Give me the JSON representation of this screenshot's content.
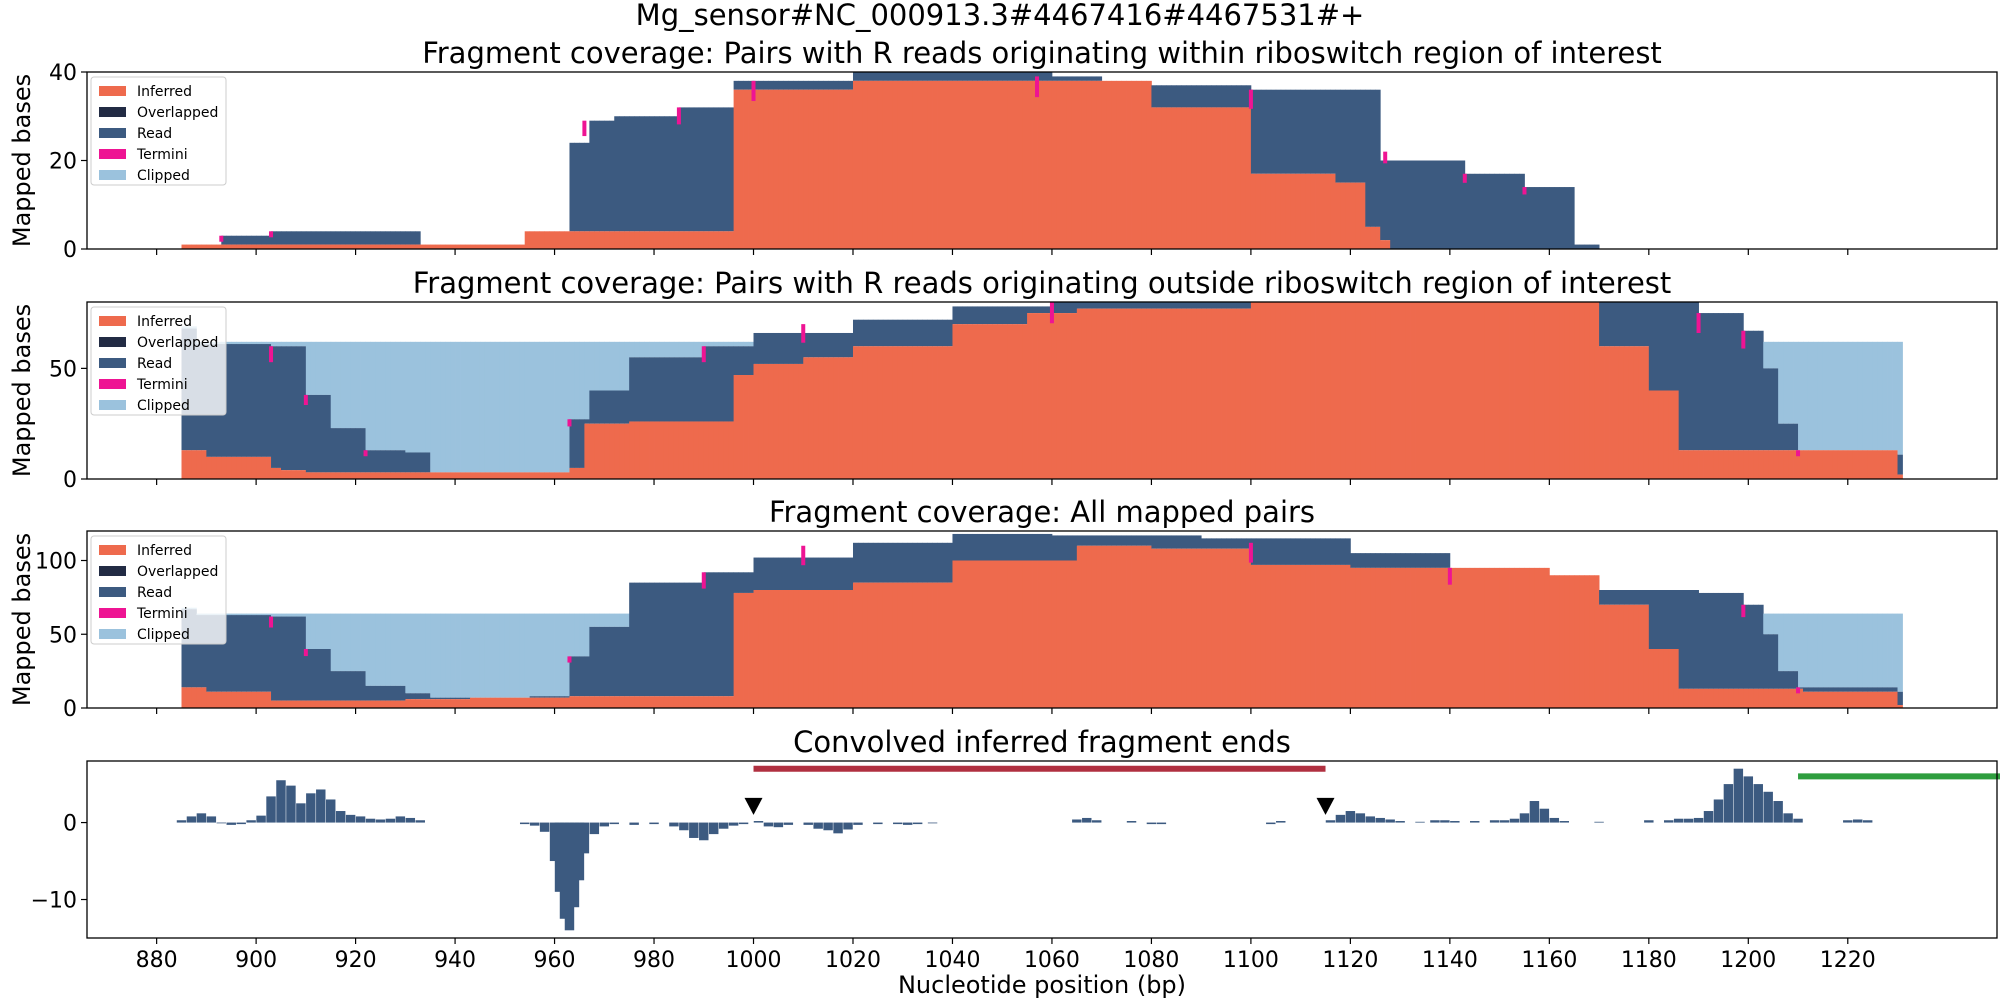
{
  "figure_title": "Mg_sensor#NC_000913.3#4467416#4467531#+",
  "colors": {
    "Inferred": "#ee6a4d",
    "Overlapped": "#222b44",
    "Read": "#3c5a80",
    "Termini": "#ee1493",
    "Clipped": "#9bc2dd",
    "region_bar": "#b03040",
    "offscreen_bar": "#2e9e3e",
    "marker": "#000000"
  },
  "chart_data": [
    {
      "type": "area",
      "title": "Fragment coverage: Pairs with R reads originating within riboswitch region of interest",
      "xlabel": "",
      "ylabel": "Mapped bases",
      "xlim": [
        866,
        1250
      ],
      "ylim": [
        0,
        40
      ],
      "yticks": [
        0,
        20,
        40
      ],
      "legend": [
        "Inferred",
        "Overlapped",
        "Read",
        "Termini",
        "Clipped"
      ],
      "legend_position": "upper-left",
      "step_series": {
        "Inferred": [
          [
            885,
            1
          ],
          [
            954,
            4
          ],
          [
            996,
            36
          ],
          [
            1020,
            38
          ],
          [
            1080,
            32
          ],
          [
            1100,
            17
          ],
          [
            1117,
            15
          ],
          [
            1123,
            5
          ],
          [
            1126,
            2
          ],
          [
            1128,
            0
          ]
        ],
        "Read": [
          [
            885,
            1
          ],
          [
            893,
            3
          ],
          [
            903,
            4
          ],
          [
            933,
            0
          ],
          [
            963,
            24
          ],
          [
            967,
            29
          ],
          [
            972,
            30
          ],
          [
            985,
            32
          ],
          [
            996,
            38
          ],
          [
            1020,
            40
          ],
          [
            1060,
            39
          ],
          [
            1070,
            37
          ],
          [
            1100,
            36
          ],
          [
            1126,
            20
          ],
          [
            1143,
            17
          ],
          [
            1155,
            14
          ],
          [
            1165,
            1
          ],
          [
            1170,
            0
          ]
        ],
        "Termini": [
          [
            893,
            3
          ],
          [
            903,
            4
          ],
          [
            966,
            29
          ],
          [
            985,
            32
          ],
          [
            1000,
            38
          ],
          [
            1057,
            39
          ],
          [
            1100,
            36
          ],
          [
            1127,
            22
          ],
          [
            1143,
            17
          ],
          [
            1155,
            14
          ]
        ]
      }
    },
    {
      "type": "area",
      "title": "Fragment coverage: Pairs with R reads originating outside riboswitch region of interest",
      "xlabel": "",
      "ylabel": "Mapped bases",
      "xlim": [
        866,
        1250
      ],
      "ylim": [
        0,
        80
      ],
      "yticks": [
        0,
        50
      ],
      "legend": [
        "Inferred",
        "Overlapped",
        "Read",
        "Termini",
        "Clipped"
      ],
      "legend_position": "upper-left",
      "step_series": {
        "Inferred": [
          [
            885,
            13
          ],
          [
            890,
            10
          ],
          [
            903,
            5
          ],
          [
            905,
            4
          ],
          [
            910,
            3
          ],
          [
            932,
            3
          ],
          [
            943,
            3
          ],
          [
            963,
            5
          ],
          [
            966,
            25
          ],
          [
            975,
            26
          ],
          [
            996,
            47
          ],
          [
            1000,
            52
          ],
          [
            1010,
            55
          ],
          [
            1020,
            60
          ],
          [
            1040,
            70
          ],
          [
            1055,
            75
          ],
          [
            1065,
            77
          ],
          [
            1100,
            80
          ],
          [
            1160,
            80
          ],
          [
            1170,
            60
          ],
          [
            1180,
            40
          ],
          [
            1186,
            13
          ],
          [
            1211,
            13
          ],
          [
            1230,
            2
          ]
        ],
        "Read": [
          [
            885,
            68
          ],
          [
            888,
            61
          ],
          [
            903,
            60
          ],
          [
            910,
            38
          ],
          [
            915,
            23
          ],
          [
            922,
            13
          ],
          [
            930,
            12
          ],
          [
            935,
            3
          ],
          [
            960,
            3
          ],
          [
            963,
            27
          ],
          [
            967,
            40
          ],
          [
            975,
            55
          ],
          [
            990,
            60
          ],
          [
            1000,
            66
          ],
          [
            1020,
            72
          ],
          [
            1040,
            78
          ],
          [
            1060,
            80
          ],
          [
            1190,
            75
          ],
          [
            1199,
            67
          ],
          [
            1203,
            50
          ],
          [
            1206,
            25
          ],
          [
            1210,
            13
          ],
          [
            1230,
            11
          ]
        ],
        "Termini": [
          [
            903,
            60
          ],
          [
            910,
            38
          ],
          [
            922,
            13
          ],
          [
            963,
            27
          ],
          [
            990,
            60
          ],
          [
            1010,
            70
          ],
          [
            1060,
            80
          ],
          [
            1190,
            75
          ],
          [
            1199,
            67
          ],
          [
            1210,
            13
          ]
        ],
        "Clipped": [
          [
            885,
            69
          ],
          [
            888,
            62
          ]
        ]
      }
    },
    {
      "type": "area",
      "title": "Fragment coverage: All mapped pairs",
      "xlabel": "",
      "ylabel": "Mapped bases",
      "xlim": [
        866,
        1250
      ],
      "ylim": [
        0,
        120
      ],
      "yticks": [
        0,
        50,
        100
      ],
      "legend": [
        "Inferred",
        "Overlapped",
        "Read",
        "Termini",
        "Clipped"
      ],
      "legend_position": "upper-left",
      "step_series": {
        "Inferred": [
          [
            885,
            14
          ],
          [
            890,
            11
          ],
          [
            903,
            5
          ],
          [
            905,
            5
          ],
          [
            910,
            5
          ],
          [
            930,
            6
          ],
          [
            943,
            7
          ],
          [
            963,
            8
          ],
          [
            996,
            78
          ],
          [
            1000,
            80
          ],
          [
            1020,
            85
          ],
          [
            1040,
            100
          ],
          [
            1065,
            110
          ],
          [
            1080,
            108
          ],
          [
            1100,
            97
          ],
          [
            1120,
            95
          ],
          [
            1160,
            90
          ],
          [
            1170,
            70
          ],
          [
            1180,
            40
          ],
          [
            1186,
            13
          ],
          [
            1211,
            11
          ],
          [
            1230,
            2
          ]
        ],
        "Read": [
          [
            885,
            67
          ],
          [
            888,
            63
          ],
          [
            903,
            62
          ],
          [
            910,
            40
          ],
          [
            915,
            25
          ],
          [
            922,
            15
          ],
          [
            930,
            10
          ],
          [
            935,
            7
          ],
          [
            955,
            8
          ],
          [
            963,
            35
          ],
          [
            967,
            55
          ],
          [
            975,
            85
          ],
          [
            990,
            92
          ],
          [
            1000,
            102
          ],
          [
            1020,
            112
          ],
          [
            1040,
            118
          ],
          [
            1060,
            117
          ],
          [
            1090,
            115
          ],
          [
            1120,
            105
          ],
          [
            1140,
            95
          ],
          [
            1160,
            80
          ],
          [
            1190,
            78
          ],
          [
            1199,
            70
          ],
          [
            1203,
            50
          ],
          [
            1206,
            25
          ],
          [
            1210,
            14
          ],
          [
            1230,
            11
          ]
        ],
        "Termini": [
          [
            903,
            62
          ],
          [
            910,
            40
          ],
          [
            963,
            35
          ],
          [
            990,
            92
          ],
          [
            1010,
            110
          ],
          [
            1100,
            112
          ],
          [
            1140,
            95
          ],
          [
            1199,
            70
          ],
          [
            1210,
            14
          ]
        ],
        "Clipped": [
          [
            885,
            68
          ],
          [
            888,
            64
          ]
        ]
      }
    },
    {
      "type": "bar",
      "title": "Convolved inferred fragment ends",
      "xlabel": "Nucleotide position (bp)",
      "ylabel": "",
      "xlim": [
        866,
        1250
      ],
      "ylim": [
        -15,
        8
      ],
      "yticks": [
        -10,
        0
      ],
      "xticks": [
        880,
        900,
        920,
        940,
        960,
        980,
        1000,
        1020,
        1040,
        1060,
        1080,
        1100,
        1120,
        1140,
        1160,
        1180,
        1200,
        1220
      ],
      "bars": [
        [
          885,
          0.3
        ],
        [
          887,
          0.8
        ],
        [
          889,
          1.2
        ],
        [
          891,
          0.8
        ],
        [
          893,
          -0.1
        ],
        [
          895,
          -0.3
        ],
        [
          897,
          -0.2
        ],
        [
          899,
          0.3
        ],
        [
          901,
          0.9
        ],
        [
          903,
          3.4
        ],
        [
          905,
          5.5
        ],
        [
          907,
          4.8
        ],
        [
          909,
          2.5
        ],
        [
          911,
          3.8
        ],
        [
          913,
          4.3
        ],
        [
          915,
          3.0
        ],
        [
          917,
          1.5
        ],
        [
          919,
          1.0
        ],
        [
          921,
          0.8
        ],
        [
          923,
          0.5
        ],
        [
          925,
          0.4
        ],
        [
          927,
          0.5
        ],
        [
          929,
          0.8
        ],
        [
          931,
          0.6
        ],
        [
          933,
          0.3
        ],
        [
          954,
          -0.2
        ],
        [
          956,
          -0.4
        ],
        [
          958,
          -1.2
        ],
        [
          960,
          -5.0
        ],
        [
          961,
          -9.0
        ],
        [
          962,
          -12.5
        ],
        [
          963,
          -14.0
        ],
        [
          964,
          -11.0
        ],
        [
          965,
          -7.5
        ],
        [
          966,
          -4.0
        ],
        [
          968,
          -1.5
        ],
        [
          970,
          -0.5
        ],
        [
          972,
          -0.2
        ],
        [
          976,
          -0.3
        ],
        [
          980,
          -0.2
        ],
        [
          984,
          -0.5
        ],
        [
          986,
          -1.0
        ],
        [
          988,
          -2.0
        ],
        [
          990,
          -2.3
        ],
        [
          992,
          -1.5
        ],
        [
          994,
          -0.8
        ],
        [
          996,
          -0.4
        ],
        [
          998,
          -0.2
        ],
        [
          1001,
          0.2
        ],
        [
          1003,
          -0.5
        ],
        [
          1005,
          -0.6
        ],
        [
          1007,
          -0.3
        ],
        [
          1011,
          -0.3
        ],
        [
          1013,
          -0.8
        ],
        [
          1015,
          -1.0
        ],
        [
          1017,
          -1.4
        ],
        [
          1019,
          -0.9
        ],
        [
          1021,
          -0.3
        ],
        [
          1025,
          -0.2
        ],
        [
          1029,
          -0.2
        ],
        [
          1031,
          -0.3
        ],
        [
          1033,
          -0.2
        ],
        [
          1036,
          -0.1
        ],
        [
          1065,
          0.4
        ],
        [
          1067,
          0.6
        ],
        [
          1069,
          0.3
        ],
        [
          1076,
          0.2
        ],
        [
          1080,
          -0.2
        ],
        [
          1082,
          -0.2
        ],
        [
          1104,
          -0.2
        ],
        [
          1106,
          0.2
        ],
        [
          1116,
          0.3
        ],
        [
          1118,
          1.0
        ],
        [
          1120,
          1.5
        ],
        [
          1122,
          1.2
        ],
        [
          1124,
          0.8
        ],
        [
          1126,
          0.6
        ],
        [
          1128,
          0.4
        ],
        [
          1130,
          0.2
        ],
        [
          1134,
          0.1
        ],
        [
          1137,
          0.3
        ],
        [
          1139,
          0.3
        ],
        [
          1141,
          0.2
        ],
        [
          1145,
          0.2
        ],
        [
          1149,
          0.3
        ],
        [
          1151,
          0.3
        ],
        [
          1153,
          0.5
        ],
        [
          1155,
          1.2
        ],
        [
          1157,
          2.8
        ],
        [
          1159,
          1.8
        ],
        [
          1161,
          0.6
        ],
        [
          1163,
          0.2
        ],
        [
          1170,
          0.1
        ],
        [
          1180,
          0.3
        ],
        [
          1184,
          0.3
        ],
        [
          1186,
          0.5
        ],
        [
          1188,
          0.5
        ],
        [
          1190,
          0.6
        ],
        [
          1192,
          1.5
        ],
        [
          1194,
          3.0
        ],
        [
          1196,
          5.0
        ],
        [
          1198,
          7.0
        ],
        [
          1200,
          6.0
        ],
        [
          1202,
          5.0
        ],
        [
          1204,
          4.0
        ],
        [
          1206,
          2.8
        ],
        [
          1208,
          1.2
        ],
        [
          1210,
          0.5
        ],
        [
          1220,
          0.3
        ],
        [
          1222,
          0.4
        ],
        [
          1224,
          0.3
        ]
      ],
      "region_bar": {
        "x0": 1000,
        "x1": 1115,
        "y": 7
      },
      "offscreen_bar": {
        "x0": 1210,
        "x1": 1250,
        "y": 6
      },
      "markers": [
        {
          "x": 1000,
          "y": 1
        },
        {
          "x": 1115,
          "y": 1
        }
      ]
    }
  ]
}
